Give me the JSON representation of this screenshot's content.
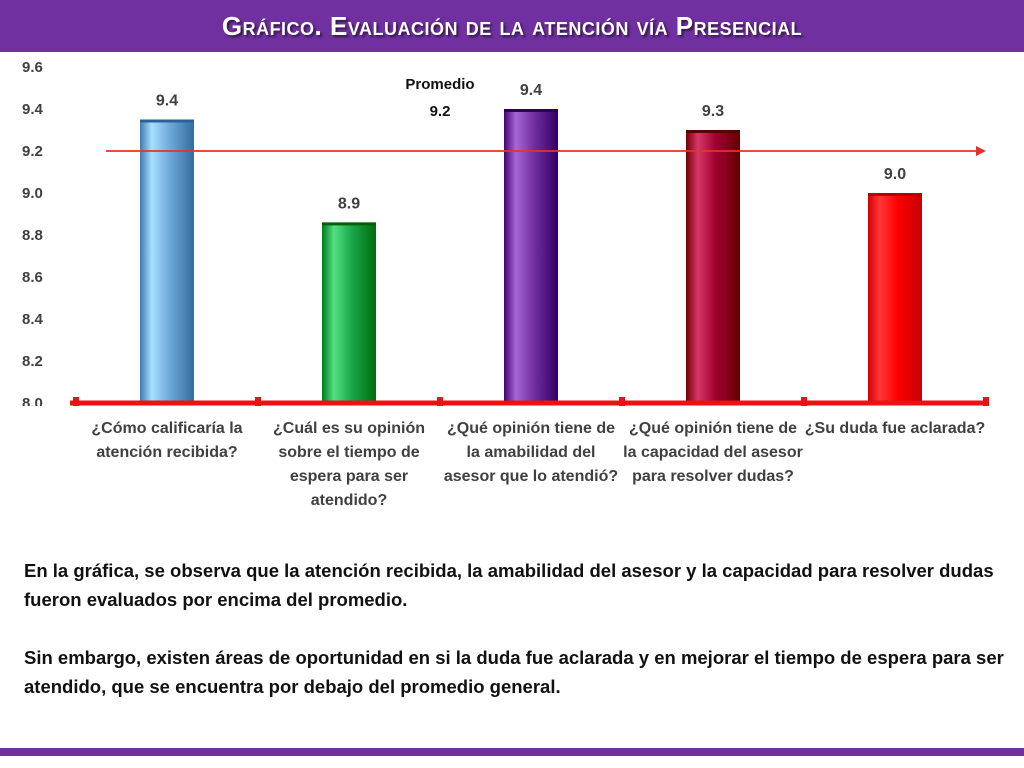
{
  "title": "Gráfico. Evaluación de la atención vía Presencial",
  "chart_data": {
    "type": "bar",
    "categories": [
      "¿Cómo calificaría la atención recibida?",
      "¿Cuál es su opinión sobre el tiempo de espera para ser atendido?",
      "¿Qué opinión tiene de la amabilidad del asesor que lo atendió?",
      "¿Qué opinión tiene de la capacidad del asesor para resolver dudas?",
      "¿Su duda fue aclarada?"
    ],
    "values": [
      9.35,
      8.86,
      9.4,
      9.3,
      9.0
    ],
    "data_labels": [
      "9.4",
      "8.9",
      "9.4",
      "9.3",
      "9.0"
    ],
    "colors": [
      "#6fa8dc",
      "#1aa84a",
      "#7030a0",
      "#a00030",
      "#ff0000"
    ],
    "ylim": [
      8.0,
      9.6
    ],
    "yticks": [
      "8.0",
      "8.2",
      "8.4",
      "8.6",
      "8.8",
      "9.0",
      "9.2",
      "9.4",
      "9.6"
    ],
    "average": {
      "value": 9.2,
      "label": "Promedio",
      "value_label": "9.2",
      "color": "#e8302a"
    },
    "xlabel": "",
    "ylabel": "",
    "grid": false
  },
  "text": {
    "paragraph_1": "En la gráfica, se observa que la atención recibida, la amabilidad del asesor y la capacidad para resolver dudas fueron evaluados por encima del promedio.",
    "paragraph_2": "Sin embargo, existen áreas de oportunidad en si la duda fue aclarada y en mejorar el tiempo de espera para ser atendido, que se encuentra por debajo del promedio general."
  },
  "colors": {
    "accent": "#7030a0",
    "axis": "#ee1111"
  }
}
